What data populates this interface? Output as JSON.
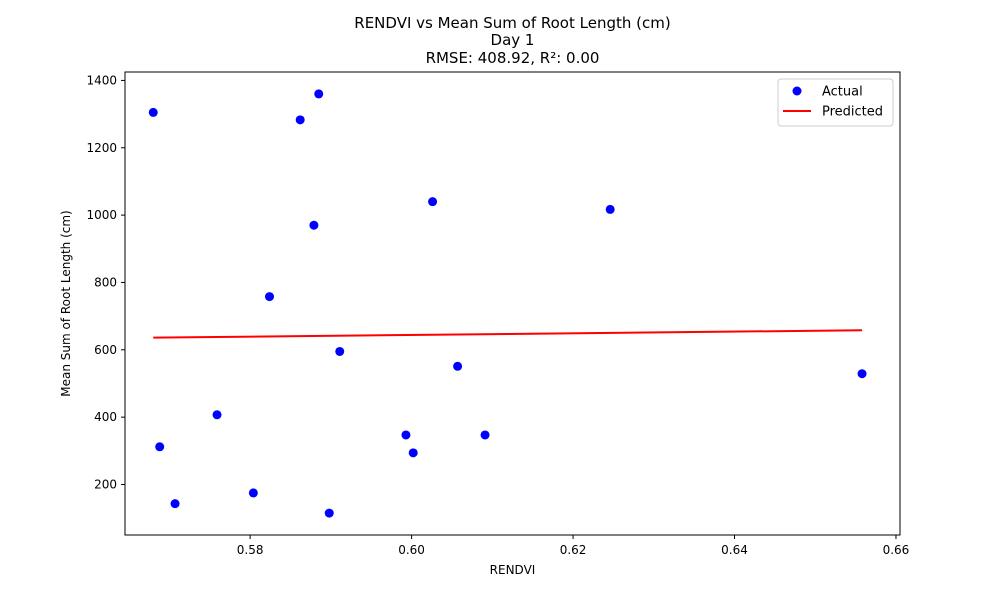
{
  "chart_data": {
    "type": "scatter",
    "title": "RENDVI vs Mean Sum of Root Length (cm)",
    "subtitle": "Day 1",
    "metrics_text": "RMSE: 408.92, R²: 0.00",
    "xlabel": "RENDVI",
    "ylabel": "Mean Sum of Root Length (cm)",
    "xlim": [
      0.5645,
      0.6605
    ],
    "ylim": [
      50,
      1425
    ],
    "xticks": [
      0.58,
      0.6,
      0.62,
      0.64,
      0.66
    ],
    "xtick_labels": [
      "0.58",
      "0.60",
      "0.62",
      "0.64",
      "0.66"
    ],
    "yticks": [
      200,
      400,
      600,
      800,
      1000,
      1200,
      1400
    ],
    "ytick_labels": [
      "200",
      "400",
      "600",
      "800",
      "1000",
      "1200",
      "1400"
    ],
    "grid": false,
    "legend_position": "top-right",
    "series": [
      {
        "name": "Actual",
        "kind": "scatter",
        "color": "#0000ff",
        "points": [
          {
            "x": 0.568,
            "y": 1305
          },
          {
            "x": 0.5688,
            "y": 312
          },
          {
            "x": 0.5707,
            "y": 143
          },
          {
            "x": 0.5759,
            "y": 407
          },
          {
            "x": 0.5804,
            "y": 175
          },
          {
            "x": 0.5824,
            "y": 758
          },
          {
            "x": 0.5862,
            "y": 1283
          },
          {
            "x": 0.5879,
            "y": 970
          },
          {
            "x": 0.5885,
            "y": 1360
          },
          {
            "x": 0.5898,
            "y": 115
          },
          {
            "x": 0.5911,
            "y": 595
          },
          {
            "x": 0.5993,
            "y": 347
          },
          {
            "x": 0.6002,
            "y": 294
          },
          {
            "x": 0.6026,
            "y": 1040
          },
          {
            "x": 0.6057,
            "y": 551
          },
          {
            "x": 0.6091,
            "y": 347
          },
          {
            "x": 0.6246,
            "y": 1017
          },
          {
            "x": 0.6558,
            "y": 529
          }
        ]
      },
      {
        "name": "Predicted",
        "kind": "line",
        "color": "#ff0000",
        "points": [
          {
            "x": 0.568,
            "y": 636
          },
          {
            "x": 0.6558,
            "y": 658
          }
        ]
      }
    ]
  }
}
